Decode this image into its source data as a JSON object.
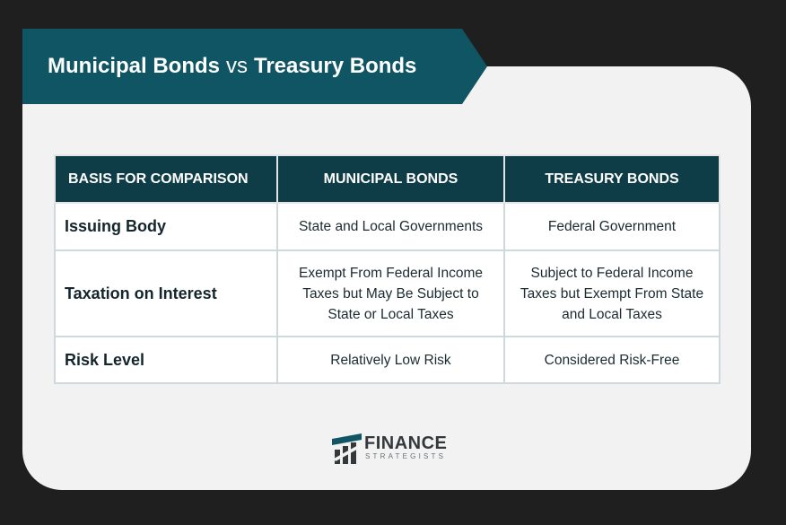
{
  "title": {
    "left": "Municipal Bonds",
    "vs": "vs",
    "right": "Treasury Bonds"
  },
  "table": {
    "headers": [
      "BASIS FOR COMPARISON",
      "MUNICIPAL BONDS",
      "TREASURY BONDS"
    ],
    "rows": [
      {
        "label": "Issuing Body",
        "municipal": "State and Local Governments",
        "treasury": "Federal Government"
      },
      {
        "label": "Taxation on Interest",
        "municipal": "Exempt From Federal Income Taxes but May Be Subject to State or Local Taxes",
        "treasury": "Subject to Federal Income Taxes but Exempt From State and Local Taxes"
      },
      {
        "label": "Risk Level",
        "municipal": "Relatively Low Risk",
        "treasury": "Considered Risk-Free"
      }
    ]
  },
  "logo": {
    "name": "FINANCE",
    "sub": "STRATEGISTS"
  },
  "colors": {
    "banner": "#0f5563",
    "header": "#0f3d47",
    "background": "#1f1f1f",
    "card": "#f2f2f2"
  }
}
